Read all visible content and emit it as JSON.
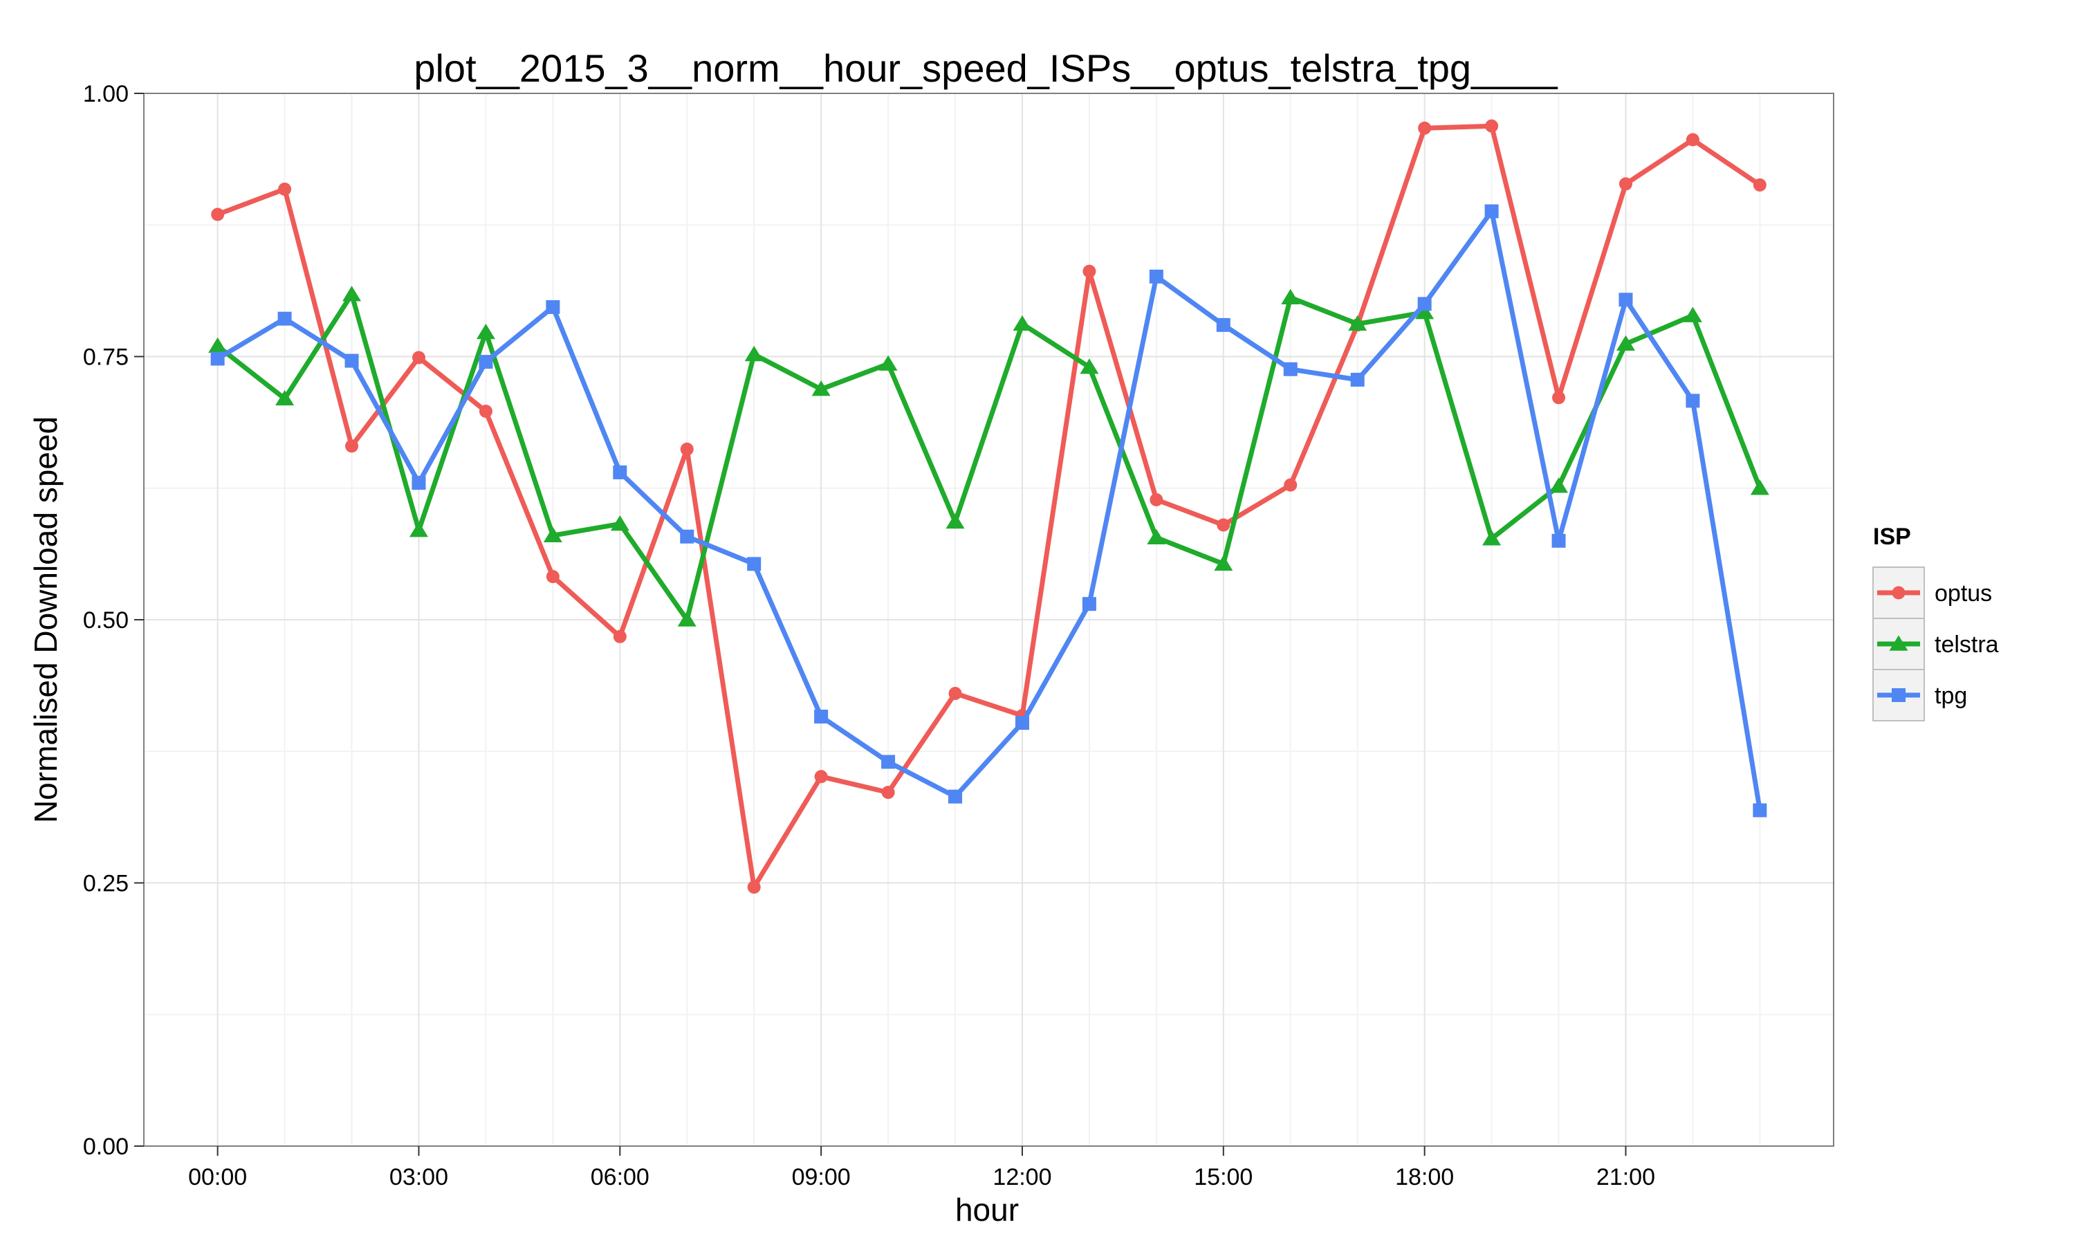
{
  "chart_data": {
    "type": "line",
    "title": "plot__2015_3__norm__hour_speed_ISPs__optus_telstra_tpg____",
    "xlabel": "hour",
    "ylabel": "Normalised Download speed",
    "x": [
      0,
      1,
      2,
      3,
      4,
      5,
      6,
      7,
      8,
      9,
      10,
      11,
      12,
      13,
      14,
      15,
      16,
      17,
      18,
      19,
      20,
      21,
      22,
      23
    ],
    "xlim": [
      -1.1,
      24.1
    ],
    "x_ticks": [
      0,
      3,
      6,
      9,
      12,
      15,
      18,
      21
    ],
    "x_tick_labels": [
      "00:00",
      "03:00",
      "06:00",
      "09:00",
      "12:00",
      "15:00",
      "18:00",
      "21:00"
    ],
    "ylim": [
      0,
      1
    ],
    "y_ticks": [
      0,
      0.25,
      0.5,
      0.75,
      1
    ],
    "y_tick_labels": [
      "0.00",
      "0.25",
      "0.50",
      "0.75",
      "1.00"
    ],
    "grid": true,
    "legend": {
      "title": "ISP",
      "position": "right"
    },
    "series": [
      {
        "name": "optus",
        "color": "#ef5b57",
        "marker": "circle",
        "values": [
          0.885,
          0.909,
          0.665,
          0.749,
          0.698,
          0.541,
          0.484,
          0.662,
          0.246,
          0.351,
          0.336,
          0.43,
          0.409,
          0.831,
          0.614,
          0.59,
          0.628,
          0.78,
          0.967,
          0.969,
          0.711,
          0.914,
          0.956,
          0.913
        ]
      },
      {
        "name": "telstra",
        "color": "#1fab2b",
        "marker": "triangle",
        "values": [
          0.76,
          0.71,
          0.809,
          0.585,
          0.773,
          0.58,
          0.591,
          0.5,
          0.752,
          0.719,
          0.743,
          0.593,
          0.781,
          0.74,
          0.578,
          0.553,
          0.806,
          0.781,
          0.792,
          0.577,
          0.627,
          0.762,
          0.789,
          0.625
        ]
      },
      {
        "name": "tpg",
        "color": "#4f86f3",
        "marker": "square",
        "values": [
          0.748,
          0.786,
          0.746,
          0.63,
          0.745,
          0.797,
          0.64,
          0.579,
          0.553,
          0.408,
          0.365,
          0.332,
          0.402,
          0.515,
          0.826,
          0.78,
          0.738,
          0.728,
          0.8,
          0.888,
          0.575,
          0.804,
          0.708,
          0.319
        ]
      }
    ]
  }
}
